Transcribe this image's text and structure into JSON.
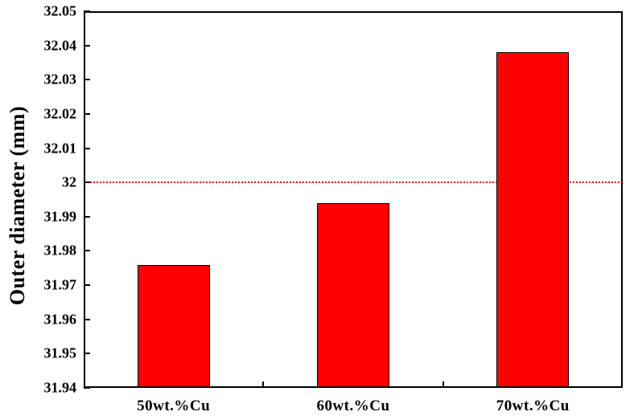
{
  "chart_data": {
    "type": "bar",
    "title": "",
    "xlabel": "",
    "ylabel": "Outer diameter (mm)",
    "categories": [
      "50wt.%Cu",
      "60wt.%Cu",
      "70wt.%Cu"
    ],
    "values": [
      31.976,
      31.994,
      32.038
    ],
    "ylim": [
      31.94,
      32.05
    ],
    "ytick_step": 0.01,
    "ytick_labels": [
      "32.05",
      "32.04",
      "32.03",
      "32.02",
      "32.01",
      "32",
      "31.99",
      "31.98",
      "31.97",
      "31.96",
      "31.95",
      "31.94"
    ],
    "reference_line": 32,
    "grid": "off",
    "legend": "none",
    "colors": {
      "bar_fill": "#ff0000",
      "bar_border": "#000000",
      "reference_line": "#ff0000",
      "axis": "#000000",
      "text": "#000000",
      "background": "#ffffff"
    }
  }
}
